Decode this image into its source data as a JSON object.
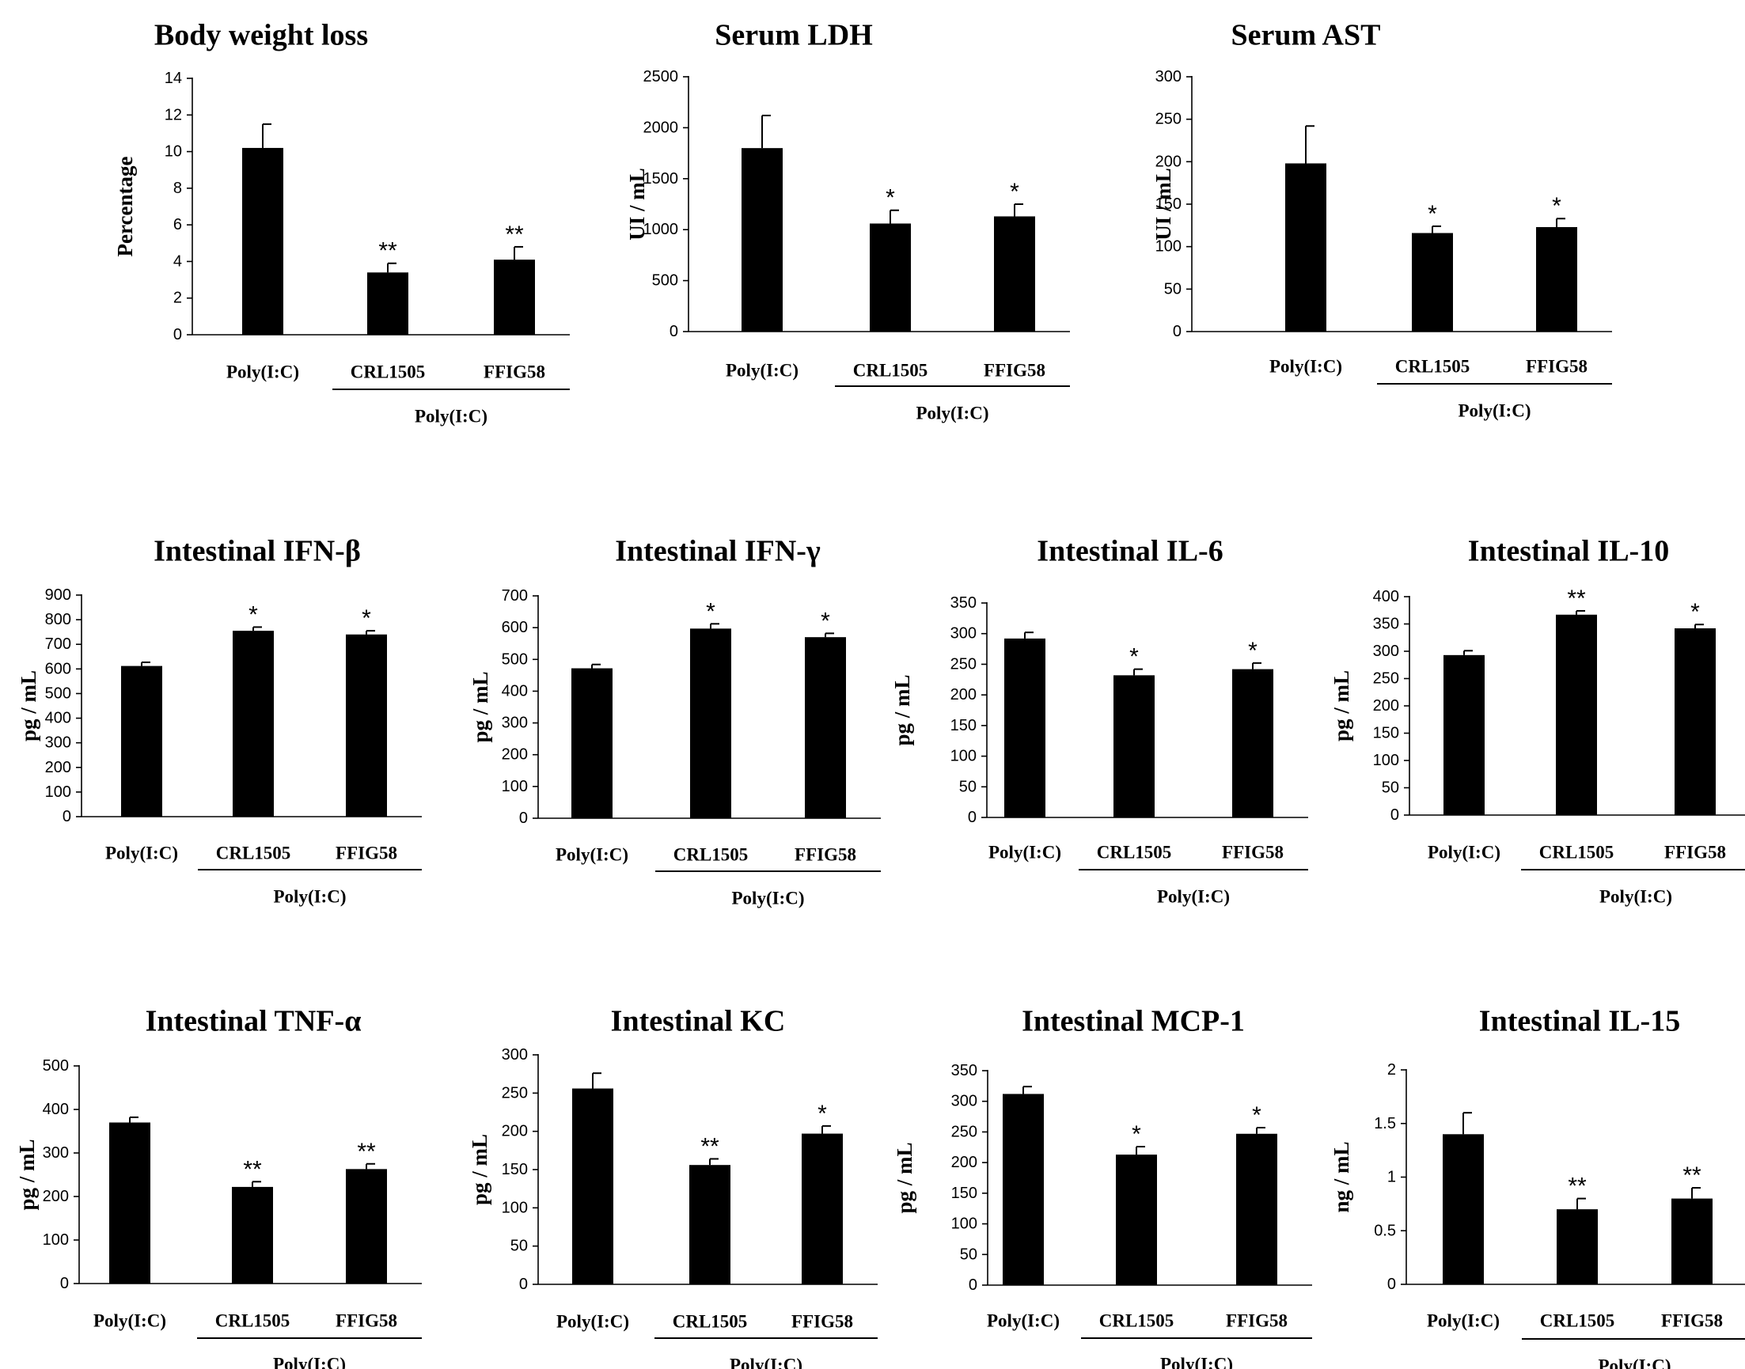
{
  "chart_data": [
    {
      "type": "bar",
      "title": "Body weight loss",
      "ylabel": "Percentage",
      "ylim": [
        0,
        14
      ],
      "ticks": [
        0,
        2,
        4,
        6,
        8,
        10,
        12,
        14
      ],
      "categories": [
        "Poly(I:C)",
        "CRL1505",
        "FFIG58"
      ],
      "values": [
        10.2,
        3.4,
        4.1
      ],
      "errors": [
        1.3,
        0.5,
        0.7
      ],
      "significance": [
        "",
        "**",
        "**"
      ],
      "group_label": "Poly(I:C)"
    },
    {
      "type": "bar",
      "title": "Serum LDH",
      "ylabel": "UI / mL",
      "ylim": [
        0,
        2500
      ],
      "ticks": [
        0,
        500,
        1000,
        1500,
        2000,
        2500
      ],
      "categories": [
        "Poly(I:C)",
        "CRL1505",
        "FFIG58"
      ],
      "values": [
        1800,
        1060,
        1130
      ],
      "errors": [
        320,
        130,
        120
      ],
      "significance": [
        "",
        "*",
        "*"
      ],
      "group_label": "Poly(I:C)"
    },
    {
      "type": "bar",
      "title": "Serum AST",
      "ylabel": "UI / mL",
      "ylim": [
        0,
        300
      ],
      "ticks": [
        0,
        50,
        100,
        150,
        200,
        250,
        300
      ],
      "categories": [
        "Poly(I:C)",
        "CRL1505",
        "FFIG58"
      ],
      "values": [
        198,
        116,
        123
      ],
      "errors": [
        44,
        8,
        10
      ],
      "significance": [
        "",
        "*",
        "*"
      ],
      "group_label": "Poly(I:C)"
    },
    {
      "type": "bar",
      "title": "Intestinal IFN-β",
      "ylabel": "pg / mL",
      "ylim": [
        0,
        900
      ],
      "ticks": [
        0,
        100,
        200,
        300,
        400,
        500,
        600,
        700,
        800,
        900
      ],
      "categories": [
        "Poly(I:C)",
        "CRL1505",
        "FFIG58"
      ],
      "values": [
        612,
        755,
        740
      ],
      "errors": [
        15,
        15,
        15
      ],
      "significance": [
        "",
        "*",
        "*"
      ],
      "group_label": "Poly(I:C)"
    },
    {
      "type": "bar",
      "title": "Intestinal IFN-γ",
      "ylabel": "pg / mL",
      "ylim": [
        0,
        700
      ],
      "ticks": [
        0,
        100,
        200,
        300,
        400,
        500,
        600,
        700
      ],
      "categories": [
        "Poly(I:C)",
        "CRL1505",
        "FFIG58"
      ],
      "values": [
        472,
        597,
        570
      ],
      "errors": [
        12,
        15,
        12
      ],
      "significance": [
        "",
        "*",
        "*"
      ],
      "group_label": "Poly(I:C)"
    },
    {
      "type": "bar",
      "title": "Intestinal IL-6",
      "ylabel": "pg / mL",
      "ylim": [
        0,
        350
      ],
      "ticks": [
        0,
        50,
        100,
        150,
        200,
        250,
        300,
        350
      ],
      "categories": [
        "Poly(I:C)",
        "CRL1505",
        "FFIG58"
      ],
      "values": [
        292,
        232,
        242
      ],
      "errors": [
        10,
        10,
        10
      ],
      "significance": [
        "",
        "*",
        "*"
      ],
      "group_label": "Poly(I:C)"
    },
    {
      "type": "bar",
      "title": "Intestinal IL-10",
      "ylabel": "pg / mL",
      "ylim": [
        0,
        400
      ],
      "ticks": [
        0,
        50,
        100,
        150,
        200,
        250,
        300,
        350,
        400
      ],
      "categories": [
        "Poly(I:C)",
        "CRL1505",
        "FFIG58"
      ],
      "values": [
        293,
        367,
        342
      ],
      "errors": [
        8,
        7,
        7
      ],
      "significance": [
        "",
        "**",
        "*"
      ],
      "group_label": "Poly(I:C)"
    },
    {
      "type": "bar",
      "title": "Intestinal TNF-α",
      "ylabel": "pg / mL",
      "ylim": [
        0,
        500
      ],
      "ticks": [
        0,
        100,
        200,
        300,
        400,
        500
      ],
      "categories": [
        "Poly(I:C)",
        "CRL1505",
        "FFIG58"
      ],
      "values": [
        370,
        222,
        263
      ],
      "errors": [
        12,
        12,
        12
      ],
      "significance": [
        "",
        "**",
        "**"
      ],
      "group_label": "Poly(I:C)"
    },
    {
      "type": "bar",
      "title": "Intestinal KC",
      "ylabel": "pg / mL",
      "ylim": [
        0,
        300
      ],
      "ticks": [
        0,
        50,
        100,
        150,
        200,
        250,
        300
      ],
      "categories": [
        "Poly(I:C)",
        "CRL1505",
        "FFIG58"
      ],
      "values": [
        256,
        156,
        197
      ],
      "errors": [
        20,
        8,
        10
      ],
      "significance": [
        "",
        "**",
        "*"
      ],
      "group_label": "Poly(I:C)"
    },
    {
      "type": "bar",
      "title": "Intestinal MCP-1",
      "ylabel": "pg / mL",
      "ylim": [
        0,
        350
      ],
      "ticks": [
        0,
        50,
        100,
        150,
        200,
        250,
        300,
        350
      ],
      "categories": [
        "Poly(I:C)",
        "CRL1505",
        "FFIG58"
      ],
      "values": [
        312,
        213,
        247
      ],
      "errors": [
        12,
        13,
        10
      ],
      "significance": [
        "",
        "*",
        "*"
      ],
      "group_label": "Poly(I:C)"
    },
    {
      "type": "bar",
      "title": "Intestinal IL-15",
      "ylabel": "ng / mL",
      "ylim": [
        0,
        2
      ],
      "ticks": [
        0,
        0.5,
        1,
        1.5,
        2
      ],
      "tick_labels": [
        "0",
        "0.5",
        "1",
        "1.5",
        "2"
      ],
      "categories": [
        "Poly(I:C)",
        "CRL1505",
        "FFIG58"
      ],
      "values": [
        1.4,
        0.7,
        0.8
      ],
      "errors": [
        0.2,
        0.1,
        0.1
      ],
      "significance": [
        "",
        "**",
        "**"
      ],
      "group_label": "Poly(I:C)"
    }
  ]
}
